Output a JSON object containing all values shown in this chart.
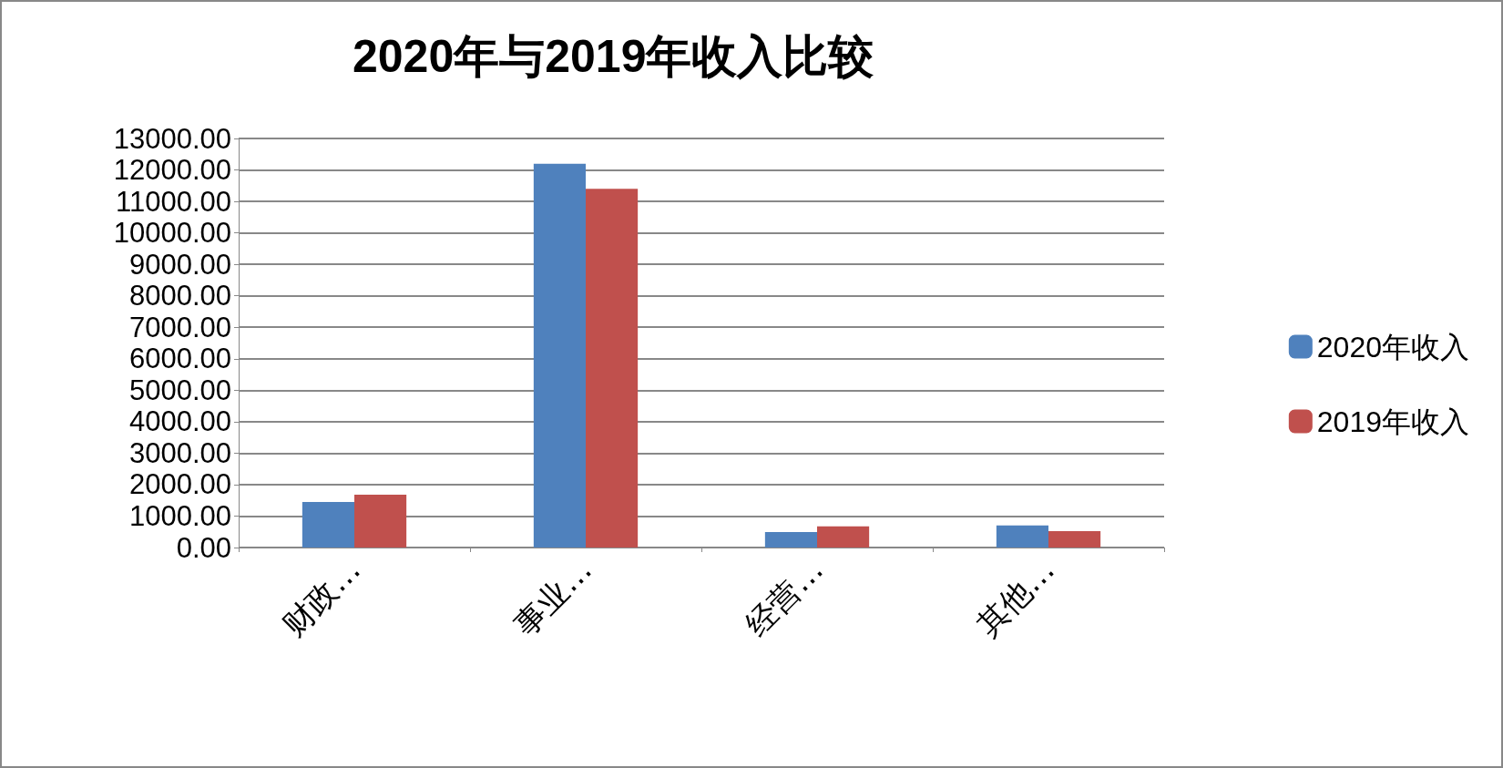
{
  "chart_data": {
    "type": "bar",
    "title": "2020年与2019年收入比较",
    "categories": [
      "财政…",
      "事业…",
      "经营…",
      "其他…"
    ],
    "series": [
      {
        "name": "2020年收入",
        "color": "#4f81bd",
        "values": [
          1450,
          12200,
          490,
          700
        ]
      },
      {
        "name": "2019年收入",
        "color": "#c0504d",
        "values": [
          1680,
          11400,
          670,
          520
        ]
      }
    ],
    "ylim": [
      0,
      13000
    ],
    "yticks": [
      {
        "value": 0,
        "label": "0.00"
      },
      {
        "value": 1000,
        "label": "1000.00"
      },
      {
        "value": 2000,
        "label": "2000.00"
      },
      {
        "value": 3000,
        "label": "3000.00"
      },
      {
        "value": 4000,
        "label": "4000.00"
      },
      {
        "value": 5000,
        "label": "5000.00"
      },
      {
        "value": 6000,
        "label": "6000.00"
      },
      {
        "value": 7000,
        "label": "7000.00"
      },
      {
        "value": 8000,
        "label": "8000.00"
      },
      {
        "value": 9000,
        "label": "9000.00"
      },
      {
        "value": 10000,
        "label": "10000.00"
      },
      {
        "value": 11000,
        "label": "11000.00"
      },
      {
        "value": 12000,
        "label": "12000.00"
      },
      {
        "value": 13000,
        "label": "13000.00"
      }
    ],
    "grid": "y",
    "legend": "right"
  }
}
